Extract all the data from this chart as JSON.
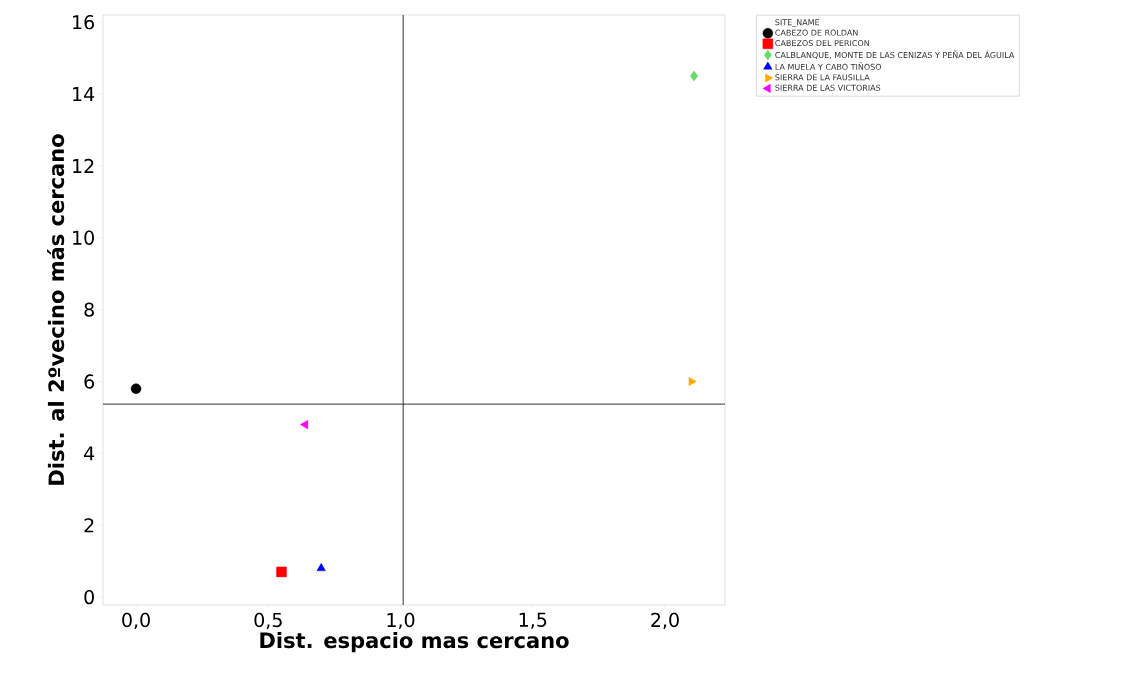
{
  "chart_data": {
    "type": "scatter",
    "xlabel": "Dist. espacio mas cercano",
    "ylabel": "Dist. al 2ºvecino más cercano",
    "legend_title": "SITE_NAME",
    "legend": "top right",
    "xlim": [
      -0.125,
      2.227
    ],
    "ylim": [
      -0.22,
      16.2
    ],
    "xticks": [
      {
        "value": 0,
        "label": "0,0"
      },
      {
        "value": 0.5,
        "label": "0,5"
      },
      {
        "value": 1,
        "label": "1,0"
      },
      {
        "value": 1.5,
        "label": "1,5"
      },
      {
        "value": 2,
        "label": "2,0"
      }
    ],
    "yticks": [
      0,
      2,
      4,
      6,
      8,
      10,
      12,
      14,
      16
    ],
    "series": [
      {
        "name": "CABEZO DE ROLDAN",
        "color": "#000000",
        "marker": "circle",
        "x": [
          0.0
        ],
        "values": [
          5.8
        ]
      },
      {
        "name": "CABEZOS DEL PERICON",
        "color": "#ff0000",
        "marker": "square",
        "x": [
          0.55
        ],
        "values": [
          0.7
        ]
      },
      {
        "name": "CALBLANQUE, MONTE DE LAS CENIZAS Y PEÑA DEL ÁGUILA",
        "color": "#66dd66",
        "marker": "diamond",
        "x": [
          2.11
        ],
        "values": [
          14.5
        ]
      },
      {
        "name": "LA MUELA Y CABO TIÑOSO",
        "color": "#0000ff",
        "marker": "triangle",
        "x": [
          0.7
        ],
        "values": [
          0.8
        ]
      },
      {
        "name": "SIERRA DE LA FAUSILLA",
        "color": "#ffaa00",
        "marker": "triangle-right",
        "x": [
          2.1
        ],
        "values": [
          6.0
        ]
      },
      {
        "name": "SIERRA DE LAS VICTORIAS",
        "color": "#ff00ff",
        "marker": "triangle-left",
        "x": [
          0.64
        ],
        "values": [
          4.8
        ]
      }
    ],
    "ref_lines": [
      {
        "axis": "x",
        "value": 1.01,
        "color": "#000000"
      },
      {
        "axis": "y",
        "value": 5.37,
        "color": "#000000"
      }
    ]
  }
}
